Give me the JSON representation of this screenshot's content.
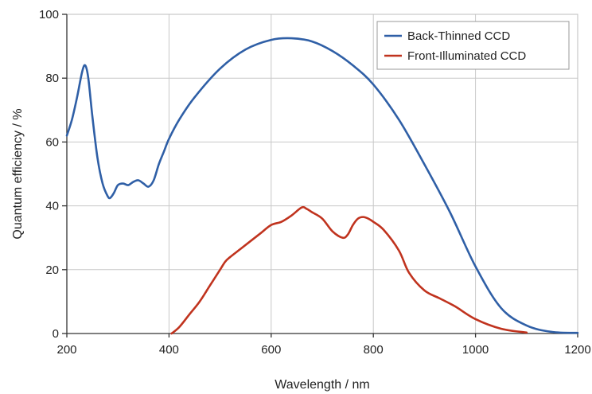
{
  "chart_data": {
    "type": "line",
    "title": "",
    "xlabel": "Wavelength / nm",
    "ylabel": "Quantum efficiency / %",
    "xlim": [
      200,
      1200
    ],
    "ylim": [
      0,
      100
    ],
    "x_ticks": [
      200,
      400,
      600,
      800,
      1000,
      1200
    ],
    "y_ticks": [
      0,
      20,
      40,
      60,
      80,
      100
    ],
    "x_tick_labels": [
      "200",
      "400",
      "600",
      "800",
      "1000",
      "1200"
    ],
    "y_tick_labels": [
      "0",
      "20",
      "40",
      "60",
      "80",
      "100"
    ],
    "grid": true,
    "legend_position": "top-right",
    "series": [
      {
        "name": "Back-Thinned CCD",
        "color": "#2f5fa6",
        "x": [
          200,
          210,
          220,
          230,
          236,
          242,
          250,
          260,
          270,
          280,
          285,
          292,
          300,
          310,
          320,
          330,
          340,
          350,
          360,
          370,
          380,
          390,
          400,
          420,
          450,
          500,
          550,
          600,
          640,
          680,
          720,
          760,
          800,
          850,
          900,
          950,
          1000,
          1050,
          1100,
          1150,
          1200
        ],
        "y": [
          62,
          67,
          74,
          82,
          84,
          80,
          68,
          55,
          47,
          43,
          42.5,
          44,
          46.5,
          47,
          46.5,
          47.5,
          48,
          47,
          46,
          48,
          53,
          57,
          61,
          67,
          74,
          83,
          89,
          92,
          92.5,
          91.5,
          88.5,
          84,
          78,
          67,
          53,
          38,
          21,
          8,
          2.5,
          0.5,
          0.2
        ]
      },
      {
        "name": "Front-Illuminated CCD",
        "color": "#c0331e",
        "x": [
          405,
          420,
          440,
          460,
          480,
          500,
          510,
          520,
          540,
          560,
          580,
          600,
          620,
          640,
          660,
          670,
          680,
          700,
          720,
          740,
          750,
          760,
          770,
          780,
          790,
          800,
          820,
          850,
          870,
          900,
          930,
          960,
          1000,
          1050,
          1100
        ],
        "y": [
          0,
          2,
          6,
          10,
          15,
          20,
          22.5,
          24,
          26.5,
          29,
          31.5,
          34,
          35,
          37,
          39.5,
          39,
          38,
          36,
          32,
          30,
          31,
          34,
          36,
          36.5,
          36,
          35,
          32.5,
          26,
          19,
          13.5,
          11,
          8.5,
          4.5,
          1.5,
          0.3
        ]
      }
    ]
  }
}
